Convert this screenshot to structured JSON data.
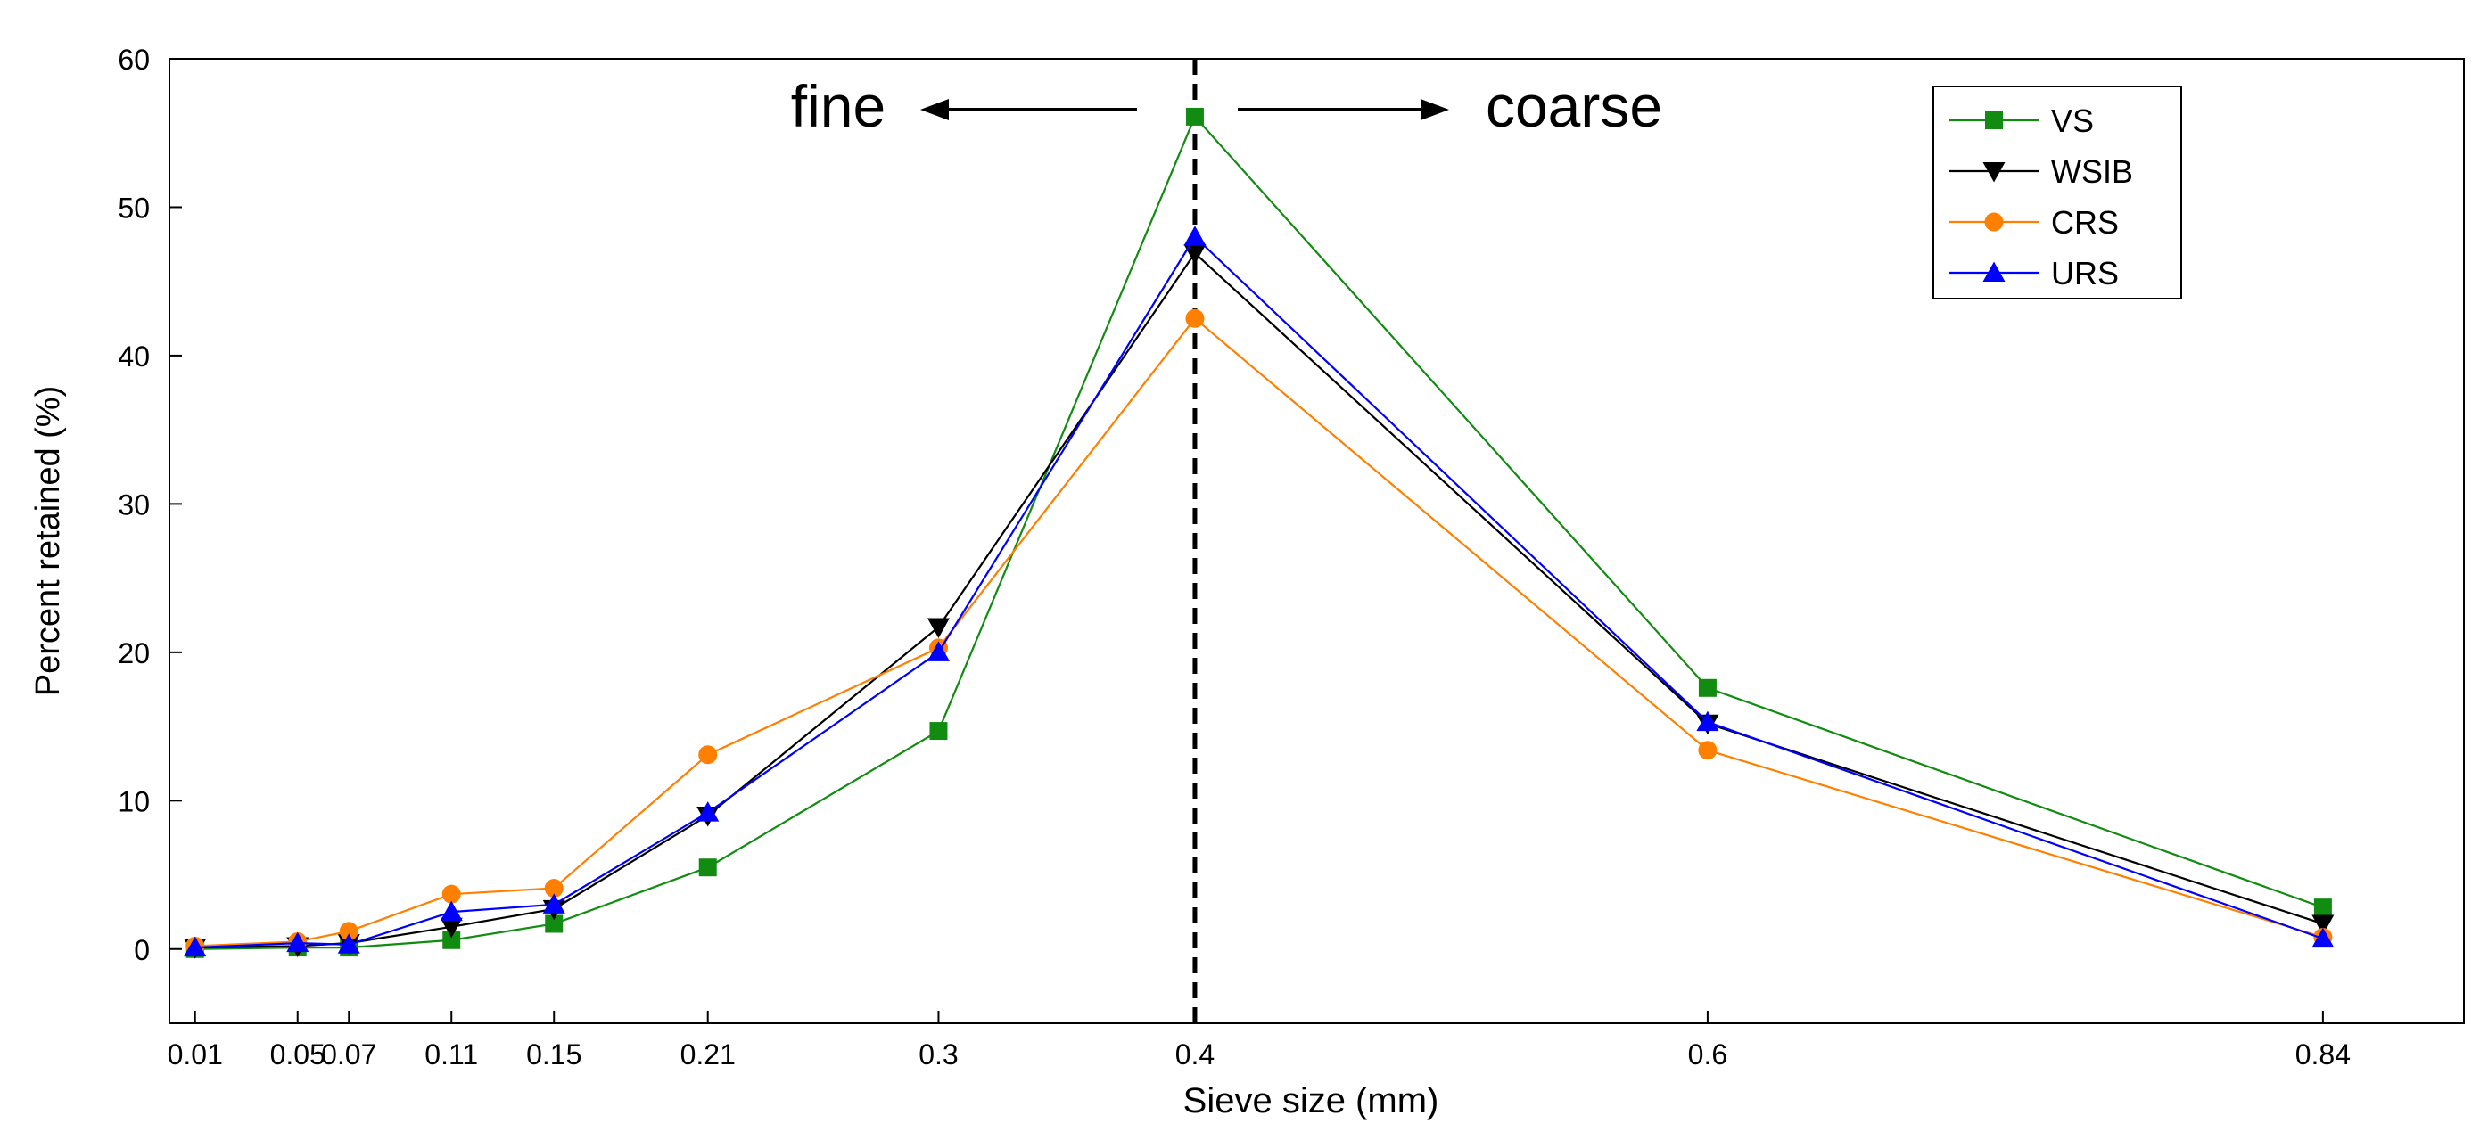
{
  "chart_data": {
    "type": "line",
    "title": "",
    "xlabel": "Sieve size (mm)",
    "ylabel": "Percent retained (%)",
    "x": [
      0.01,
      0.05,
      0.07,
      0.11,
      0.15,
      0.21,
      0.3,
      0.4,
      0.6,
      0.84
    ],
    "x_tick_labels": [
      "0.01",
      "0.05",
      "0.07",
      "0.11",
      "0.15",
      "0.21",
      "0.3",
      "0.4",
      "0.6",
      "0.84"
    ],
    "y_ticks": [
      "0",
      "10",
      "20",
      "30",
      "40",
      "50",
      "60"
    ],
    "ylim": [
      -5,
      60
    ],
    "xlim": [
      0.0,
      0.895
    ],
    "grid": false,
    "legend_position": "top-right",
    "divider": {
      "x": 0.4,
      "style": "dashed"
    },
    "annotations": {
      "left": "fine",
      "right": "coarse"
    },
    "series": [
      {
        "name": "VS",
        "color": "#118c11",
        "marker": "square",
        "values": [
          0.0,
          0.1,
          0.1,
          0.6,
          1.7,
          5.5,
          14.7,
          56.1,
          17.6,
          2.8
        ]
      },
      {
        "name": "WSIB",
        "color": "#000000",
        "marker": "triangle-down",
        "values": [
          0.1,
          0.2,
          0.4,
          1.5,
          2.7,
          9.0,
          21.7,
          46.9,
          15.2,
          1.7
        ]
      },
      {
        "name": "CRS",
        "color": "#ff8000",
        "marker": "circle",
        "values": [
          0.2,
          0.5,
          1.2,
          3.7,
          4.1,
          13.1,
          20.3,
          42.5,
          13.4,
          0.8
        ]
      },
      {
        "name": "URS",
        "color": "#0000ff",
        "marker": "triangle-up",
        "values": [
          0.1,
          0.4,
          0.3,
          2.5,
          3.0,
          9.2,
          20.0,
          48.0,
          15.3,
          0.7
        ]
      }
    ]
  }
}
